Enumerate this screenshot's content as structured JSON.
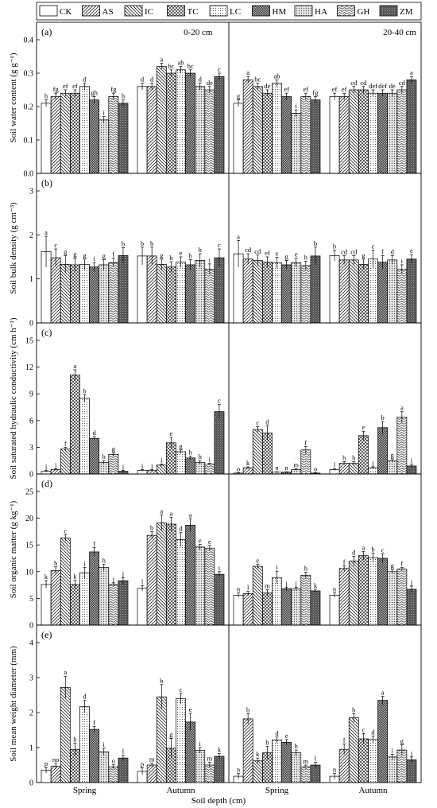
{
  "chart_data": {
    "type": "bar",
    "xlabel": "Soil depth (cm)",
    "legend": [
      "CK",
      "AS",
      "IC",
      "TC",
      "LC",
      "HM",
      "HA",
      "GH",
      "ZM"
    ],
    "legend_position": "top",
    "depth_labels": [
      "0-20 cm",
      "20-40 cm"
    ],
    "season_labels": [
      "Spring",
      "Autumn",
      "Spring",
      "Autumn"
    ],
    "panels": [
      {
        "label": "(a)",
        "ylabel": "Soil water content (g g⁻¹)",
        "ylim": [
          0,
          0.4
        ],
        "yticks": [
          0,
          0.1,
          0.2,
          0.3,
          0.4
        ],
        "tick_labels": [
          "0.0",
          "0.1",
          "0.2",
          "0.3",
          "0.4"
        ],
        "groups": [
          {
            "values": [
              0.21,
              0.23,
              0.24,
              0.24,
              0.26,
              0.22,
              0.16,
              0.23,
              0.21
            ],
            "errors": [
              0.01,
              0.01,
              0.01,
              0.01,
              0.01,
              0.01,
              0.01,
              0.01,
              0.01
            ],
            "letters": [
              "h",
              "fg",
              "ef",
              "ef",
              "d",
              "gh",
              "i",
              "fg",
              "h"
            ]
          },
          {
            "values": [
              0.26,
              0.26,
              0.32,
              0.3,
              0.31,
              0.3,
              0.26,
              0.25,
              0.29
            ],
            "errors": [
              0.01,
              0.01,
              0.01,
              0.01,
              0.01,
              0.01,
              0.01,
              0.01,
              0.01
            ],
            "letters": [
              "d",
              "d",
              "a",
              "bc",
              "ab",
              "bc",
              "d",
              "de",
              "c"
            ]
          },
          {
            "values": [
              0.21,
              0.28,
              0.26,
              0.24,
              0.27,
              0.23,
              0.18,
              0.23,
              0.22
            ],
            "errors": [
              0.01,
              0.01,
              0.01,
              0.01,
              0.01,
              0.01,
              0.01,
              0.01,
              0.01
            ],
            "letters": [
              "g",
              "a",
              "bc",
              "de",
              "ab",
              "ef",
              "i",
              "ef",
              "fg"
            ]
          },
          {
            "values": [
              0.23,
              0.23,
              0.25,
              0.25,
              0.24,
              0.24,
              0.24,
              0.25,
              0.28
            ],
            "errors": [
              0.01,
              0.01,
              0.01,
              0.01,
              0.01,
              0.01,
              0.01,
              0.01,
              0.01
            ],
            "letters": [
              "ef",
              "ef",
              "cd",
              "cd",
              "def",
              "def",
              "de",
              "cd",
              "a"
            ]
          }
        ]
      },
      {
        "label": "(b)",
        "ylabel": "Soil bulk density (g cm⁻³)",
        "ylim": [
          0,
          3
        ],
        "yticks": [
          0,
          1,
          2,
          3
        ],
        "tick_labels": [
          "0",
          "1",
          "2",
          "3"
        ],
        "groups": [
          {
            "values": [
              1.62,
              1.48,
              1.33,
              1.32,
              1.33,
              1.27,
              1.32,
              1.37,
              1.53
            ],
            "errors": [
              0.35,
              0.2,
              0.2,
              0.15,
              0.12,
              0.1,
              0.12,
              0.1,
              0.18
            ],
            "letters": [
              "a",
              "c",
              "g",
              "g",
              "g",
              "i",
              "g",
              "f",
              "b"
            ]
          },
          {
            "values": [
              1.52,
              1.52,
              1.33,
              1.27,
              1.38,
              1.32,
              1.42,
              1.22,
              1.48
            ],
            "errors": [
              0.2,
              0.2,
              0.12,
              0.12,
              0.12,
              0.12,
              0.15,
              0.12,
              0.2
            ],
            "letters": [
              "b",
              "b",
              "g",
              "h",
              "e",
              "h",
              "h",
              "i",
              "c"
            ]
          },
          {
            "values": [
              1.57,
              1.45,
              1.42,
              1.38,
              1.37,
              1.32,
              1.37,
              1.3,
              1.52
            ],
            "errors": [
              0.3,
              0.12,
              0.12,
              0.12,
              0.12,
              0.1,
              0.1,
              0.1,
              0.2
            ],
            "letters": [
              "a",
              "cd",
              "cd",
              "ef",
              "e",
              "g",
              "e",
              "h",
              "b"
            ]
          },
          {
            "values": [
              1.53,
              1.43,
              1.43,
              1.33,
              1.45,
              1.38,
              1.43,
              1.22,
              1.45
            ],
            "errors": [
              0.12,
              0.1,
              0.1,
              0.12,
              0.2,
              0.15,
              0.1,
              0.1,
              0.1
            ],
            "letters": [
              "b",
              "cd",
              "cd",
              "g",
              "c",
              "f",
              "d",
              "i",
              "e"
            ]
          }
        ]
      },
      {
        "label": "(c)",
        "ylabel": "Soil saturated hydraulic conductivity (cm h⁻¹)",
        "ylim": [
          0,
          15
        ],
        "yticks": [
          0,
          3,
          6,
          9,
          12,
          15
        ],
        "tick_labels": [
          "0",
          "3",
          "6",
          "9",
          "12",
          "15"
        ],
        "groups": [
          {
            "values": [
              0.3,
              0.5,
              2.8,
              11.1,
              8.5,
              4.0,
              1.3,
              2.2,
              0.3
            ],
            "errors": [
              0.1,
              0.1,
              0.2,
              0.6,
              0.4,
              0.2,
              0.2,
              0.2,
              0.1
            ],
            "letters": [
              "j",
              "j",
              "f",
              "a",
              "b",
              "d",
              "h",
              "g",
              "j"
            ]
          },
          {
            "values": [
              0.4,
              0.4,
              1.0,
              3.5,
              2.5,
              1.8,
              1.3,
              1.1,
              7.0
            ],
            "errors": [
              0.1,
              0.1,
              0.1,
              0.6,
              0.2,
              0.2,
              0.2,
              0.1,
              0.8
            ],
            "letters": [
              "j",
              "j",
              "i",
              "e",
              "g",
              "h",
              "h",
              "i",
              "c"
            ]
          },
          {
            "values": [
              0.1,
              0.7,
              5.0,
              4.6,
              0.2,
              0.2,
              0.5,
              2.7,
              0.1
            ],
            "errors": [
              0.05,
              0.1,
              0.3,
              0.8,
              0.05,
              0.05,
              0.1,
              0.4,
              0.05
            ],
            "letters": [
              "o",
              "k",
              "c",
              "d",
              "n",
              "n",
              "m",
              "f",
              "o"
            ]
          },
          {
            "values": [
              0.5,
              1.2,
              1.2,
              4.3,
              0.7,
              5.2,
              1.5,
              6.4,
              0.9
            ],
            "errors": [
              0.1,
              0.2,
              0.2,
              0.5,
              0.1,
              0.7,
              0.2,
              0.6,
              0.2
            ],
            "letters": [
              "l",
              "h",
              "h",
              "e",
              "j",
              "b",
              "g",
              "a",
              "i"
            ]
          }
        ]
      },
      {
        "label": "(d)",
        "ylabel": "Soil organic matter (g kg⁻¹)",
        "ylim": [
          0,
          25
        ],
        "yticks": [
          0,
          5,
          10,
          15,
          20,
          25
        ],
        "tick_labels": [
          "0",
          "5",
          "10",
          "15",
          "20",
          "25"
        ],
        "groups": [
          {
            "values": [
              7.6,
              10.2,
              16.3,
              7.6,
              9.8,
              13.7,
              10.8,
              7.6,
              8.3
            ],
            "errors": [
              0.7,
              0.7,
              0.6,
              0.8,
              1.0,
              0.8,
              0.6,
              0.3,
              0.6
            ],
            "letters": [
              "k",
              "h",
              "c",
              "k",
              "i",
              "f",
              "h",
              "j",
              "j"
            ]
          },
          {
            "values": [
              6.9,
              16.8,
              19.1,
              18.9,
              16.0,
              18.7,
              14.6,
              14.4,
              9.5
            ],
            "errors": [
              0.5,
              0.7,
              1.5,
              1.3,
              1.3,
              1.2,
              0.5,
              0.5,
              0.5
            ],
            "letters": [
              "l",
              "b",
              "a",
              "a",
              "d",
              "a",
              "e",
              "e",
              "i"
            ]
          },
          {
            "values": [
              5.6,
              5.9,
              11.0,
              6.0,
              8.9,
              6.8,
              6.8,
              9.3,
              6.4
            ],
            "errors": [
              0.4,
              0.4,
              0.4,
              0.6,
              1.2,
              0.3,
              0.3,
              0.6,
              0.3
            ],
            "letters": [
              "n",
              "l",
              "e",
              "m",
              "i",
              "j",
              "j",
              "h",
              "k"
            ]
          },
          {
            "values": [
              5.6,
              10.6,
              12.0,
              13.0,
              12.6,
              12.5,
              10.0,
              10.5,
              6.7
            ],
            "errors": [
              0.4,
              0.5,
              0.9,
              0.8,
              0.9,
              0.8,
              0.4,
              0.3,
              0.6
            ],
            "letters": [
              "n",
              "f",
              "d",
              "a",
              "b",
              "c",
              "g",
              "f",
              "j"
            ]
          }
        ]
      },
      {
        "label": "(e)",
        "ylabel": "Soil mean weight diameter (mm)",
        "ylim": [
          0,
          4
        ],
        "yticks": [
          0,
          1,
          2,
          3,
          4
        ],
        "tick_labels": [
          "0",
          "1",
          "2",
          "3",
          "4"
        ],
        "groups": [
          {
            "values": [
              0.35,
              0.47,
              2.72,
              0.95,
              2.17,
              1.52,
              0.88,
              0.45,
              0.7
            ],
            "errors": [
              0.08,
              0.08,
              0.32,
              0.18,
              0.18,
              0.08,
              0.1,
              0.06,
              0.08
            ],
            "letters": [
              "p",
              "no",
              "a",
              "h",
              "d",
              "f",
              "i",
              "o",
              "l"
            ]
          },
          {
            "values": [
              0.32,
              0.5,
              2.45,
              0.98,
              2.4,
              1.73,
              0.92,
              0.5,
              0.75
            ],
            "errors": [
              0.1,
              0.06,
              0.35,
              0.28,
              0.15,
              0.25,
              0.08,
              0.08,
              0.08
            ],
            "letters": [
              "p",
              "m",
              "b",
              "g",
              "c",
              "e",
              "i",
              "m",
              "k"
            ]
          },
          {
            "values": [
              0.18,
              1.82,
              0.62,
              0.85,
              1.22,
              1.15,
              0.85,
              0.45,
              0.5
            ],
            "errors": [
              0.08,
              0.15,
              0.08,
              0.18,
              0.08,
              0.08,
              0.08,
              0.05,
              0.08
            ],
            "letters": [
              "n",
              "b",
              "k",
              "h",
              "d",
              "e",
              "h",
              "m",
              "l"
            ]
          },
          {
            "values": [
              0.18,
              0.95,
              1.85,
              1.25,
              1.23,
              2.35,
              0.73,
              0.93,
              0.65
            ],
            "errors": [
              0.08,
              0.15,
              0.12,
              0.15,
              0.1,
              0.12,
              0.08,
              0.15,
              0.08
            ],
            "letters": [
              "n",
              "f",
              "b",
              "c",
              "d",
              "a",
              "i",
              "g",
              "j"
            ]
          }
        ]
      }
    ]
  }
}
